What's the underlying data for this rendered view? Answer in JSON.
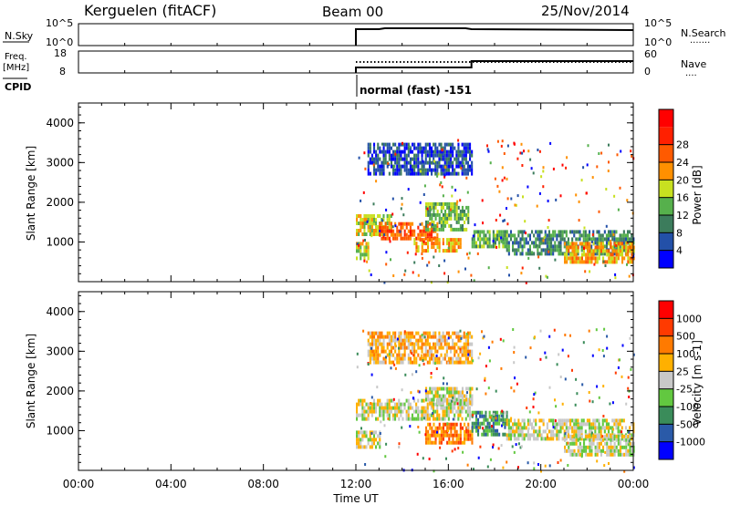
{
  "header": {
    "station": "Kerguelen (fitACF)",
    "beam": "Beam 00",
    "date": "25/Nov/2014"
  },
  "panels": {
    "nsky": {
      "left_label": "N.Sky",
      "right_label": "N.Search",
      "left_ticks": [
        "10^5",
        "10^0"
      ],
      "right_ticks": [
        "10^5",
        "10^0"
      ],
      "right_dots": "·······"
    },
    "freq": {
      "left_label_1": "Freq.",
      "left_label_2": "[MHz]",
      "right_label": "Nave",
      "left_ticks": [
        "18",
        "8"
      ],
      "right_ticks": [
        "60",
        "0"
      ],
      "right_dots": "····"
    },
    "cpid": {
      "label": "CPID",
      "mode_text": "normal (fast) -151"
    }
  },
  "colors": {
    "power": [
      "#0000ff",
      "#2350a8",
      "#3c7c5c",
      "#56b04c",
      "#c8e020",
      "#ff9000",
      "#ff5a00",
      "#ff2000",
      "#ff0000"
    ],
    "velocity": [
      "#ff0000",
      "#ff3a00",
      "#ff7a00",
      "#ffb000",
      "#c8c8c8",
      "#62c840",
      "#3a8c5a",
      "#2a5aa8",
      "#0000ff"
    ],
    "ground_scatter": "#c0c0b8"
  },
  "chart_data": [
    {
      "type": "heatmap",
      "name": "power",
      "ylabel": "Slant Range [km]",
      "xlim": [
        0,
        24
      ],
      "ylim": [
        0,
        4500
      ],
      "y_ticks": [
        1000,
        2000,
        3000,
        4000
      ],
      "x_ticks": [
        "00:00",
        "04:00",
        "08:00",
        "12:00",
        "16:00",
        "20:00",
        "00:00"
      ],
      "colorbar": {
        "label": "Power [dB]",
        "ticks": [
          "4",
          "8",
          "12",
          "16",
          "20",
          "24",
          "28"
        ]
      },
      "regions": [
        {
          "t": [
            12.0,
            13.5
          ],
          "r": [
            1200,
            1700
          ],
          "level": 4
        },
        {
          "t": [
            13.0,
            15.5
          ],
          "r": [
            1100,
            1500
          ],
          "level": 6
        },
        {
          "t": [
            15.0,
            16.9
          ],
          "r": [
            1300,
            2000
          ],
          "level": 3
        },
        {
          "t": [
            14.5,
            16.5
          ],
          "r": [
            800,
            1100
          ],
          "level": 5
        },
        {
          "t": [
            17.0,
            18.5
          ],
          "r": [
            900,
            1300
          ],
          "level": 3
        },
        {
          "t": [
            18.5,
            24.0
          ],
          "r": [
            700,
            1300
          ],
          "level": 2
        },
        {
          "t": [
            12.0,
            12.5
          ],
          "r": [
            600,
            1000
          ],
          "level": 4
        },
        {
          "t": [
            12.5,
            17.0
          ],
          "r": [
            2700,
            3500
          ],
          "level": 1
        },
        {
          "t": [
            21.0,
            24.0
          ],
          "r": [
            500,
            1000
          ],
          "level": 5
        }
      ]
    },
    {
      "type": "heatmap",
      "name": "velocity",
      "ylabel": "Slant Range [km]",
      "xlabel": "Time UT",
      "xlim": [
        0,
        24
      ],
      "ylim": [
        0,
        4500
      ],
      "y_ticks": [
        1000,
        2000,
        3000,
        4000
      ],
      "x_ticks": [
        "00:00",
        "04:00",
        "08:00",
        "12:00",
        "16:00",
        "20:00",
        "00:00"
      ],
      "colorbar": {
        "label": "Velocity [m s-1]",
        "ticks": [
          "1000",
          "500",
          "100",
          "25",
          "-25",
          "-100",
          "-500",
          "-1000"
        ]
      },
      "regions": [
        {
          "t": [
            12.0,
            17.0
          ],
          "r": [
            1300,
            1800
          ],
          "level": 4
        },
        {
          "t": [
            15.0,
            17.0
          ],
          "r": [
            1700,
            2100
          ],
          "level": 4
        },
        {
          "t": [
            15.0,
            17.0
          ],
          "r": [
            700,
            1200
          ],
          "level": 2
        },
        {
          "t": [
            17.0,
            18.5
          ],
          "r": [
            900,
            1500
          ],
          "level": 6
        },
        {
          "t": [
            18.5,
            24.0
          ],
          "r": [
            800,
            1300
          ],
          "level": 4
        },
        {
          "t": [
            12.0,
            13.0
          ],
          "r": [
            600,
            1000
          ],
          "level": 4
        },
        {
          "t": [
            12.5,
            17.0
          ],
          "r": [
            2700,
            3500
          ],
          "level": 3
        },
        {
          "t": [
            21.0,
            24.0
          ],
          "r": [
            400,
            900
          ],
          "level": 4
        }
      ]
    }
  ]
}
